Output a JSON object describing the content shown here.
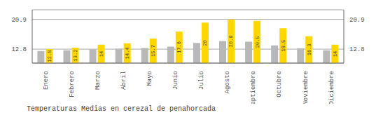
{
  "chart_data": {
    "type": "bar",
    "title": "Temperaturas Medias en cerezal de penahorcada",
    "categories": [
      "Enero",
      "Febrero",
      "Marzo",
      "Abril",
      "Mayo",
      "Junio",
      "Julio",
      "Agosto",
      "Septiembre",
      "Octubre",
      "Noviembre",
      "Diciembre"
    ],
    "series": [
      {
        "color": "#B8B8B8",
        "values": [
          12.3,
          12.5,
          12.7,
          12.9,
          13.1,
          13.5,
          14.5,
          15.0,
          14.8,
          13.8,
          13.0,
          12.5
        ]
      },
      {
        "color": "#FFD700",
        "values": [
          12.8,
          13.2,
          14.0,
          14.4,
          15.7,
          17.6,
          20.0,
          20.9,
          20.5,
          18.5,
          16.3,
          14.0
        ],
        "data_labels": true
      }
    ],
    "ylim": [
      9.0,
      23.5
    ],
    "yticks": [
      12.8,
      20.9
    ],
    "y2lim": [
      9.0,
      23.5
    ],
    "y2ticks": [
      12.8,
      20.9
    ],
    "grid": true
  }
}
